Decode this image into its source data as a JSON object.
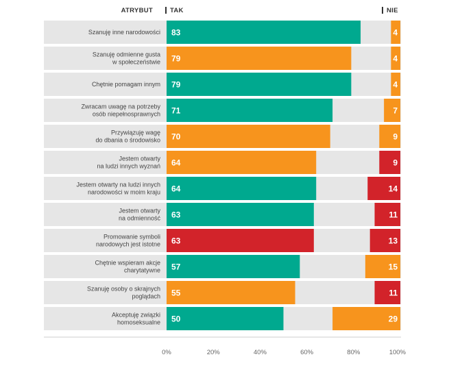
{
  "chart_data": {
    "type": "bar",
    "orientation": "horizontal",
    "stacked": true,
    "header": {
      "attribute": "ATRYBUT",
      "yes": "TAK",
      "no": "NIE"
    },
    "categories": [
      [
        "Szanuję inne narodowości"
      ],
      [
        "Szanuję odmienne gusta",
        "w społeczeństwie"
      ],
      [
        "Chętnie pomagam innym"
      ],
      [
        "Zwracam uwagę na potrzeby",
        "osób niepełnosprawnych"
      ],
      [
        "Przywiązuję wagę",
        "do dbania o środowisko"
      ],
      [
        "Jestem otwarty",
        "na ludzi innych wyznań"
      ],
      [
        "Jestem otwarty na ludzi innych",
        "narodowości w moim kraju"
      ],
      [
        "Jestem otwarty",
        "na odmienność"
      ],
      [
        "Promowanie symboli",
        "narodowych jest istotne"
      ],
      [
        "Chętnie wspieram akcje",
        "charytatywne"
      ],
      [
        "Szanuję osoby o skrajnych",
        "poglądach"
      ],
      [
        "Akceptuję związki",
        "homoseksualne"
      ]
    ],
    "series": [
      {
        "name": "TAK",
        "values": [
          83,
          79,
          79,
          71,
          70,
          64,
          64,
          63,
          63,
          57,
          55,
          50
        ]
      },
      {
        "name": "NIE",
        "values": [
          4,
          4,
          4,
          7,
          9,
          9,
          14,
          11,
          13,
          15,
          11,
          29
        ]
      }
    ],
    "yes_colors": [
      "#00a98f",
      "#f7941d",
      "#00a98f",
      "#00a98f",
      "#f7941d",
      "#f7941d",
      "#00a98f",
      "#00a98f",
      "#d2232a",
      "#00a98f",
      "#f7941d",
      "#00a98f"
    ],
    "no_colors": [
      "#f7941d",
      "#f7941d",
      "#f7941d",
      "#f7941d",
      "#f7941d",
      "#d2232a",
      "#d2232a",
      "#d2232a",
      "#d2232a",
      "#f7941d",
      "#d2232a",
      "#f7941d"
    ],
    "background_color": "#e6e6e6",
    "x_ticks": [
      "0%",
      "20%",
      "40%",
      "60%",
      "80%",
      "100%"
    ],
    "xlim": [
      0,
      100
    ]
  }
}
